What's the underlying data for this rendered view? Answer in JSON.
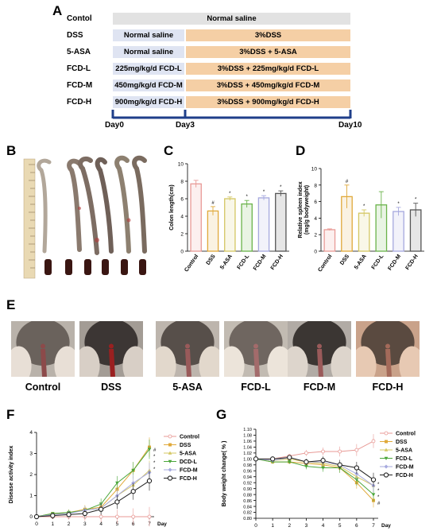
{
  "panelA": {
    "letter": "A",
    "rows": [
      {
        "group": "Contol",
        "pre": "",
        "post": "Normal saline",
        "full": true
      },
      {
        "group": "DSS",
        "pre": "Normal saline",
        "post": "3%DSS"
      },
      {
        "group": "5-ASA",
        "pre": "Normal saline",
        "post": "3%DSS + 5-ASA"
      },
      {
        "group": "FCD-L",
        "pre": "225mg/kg/d FCD-L",
        "post": "3%DSS + 225mg/kg/d FCD-L"
      },
      {
        "group": "FCD-M",
        "pre": "450mg/kg/d FCD-M",
        "post": "3%DSS + 450mg/kg/d FCD-M"
      },
      {
        "group": "FCD-H",
        "pre": "900mg/kg/d FCD-H",
        "post": "3%DSS + 900mg/kg/d FCD-H"
      }
    ],
    "timeline": [
      "Day0",
      "Day3",
      "Day10"
    ],
    "colors": {
      "full": "#e2e2e2",
      "pre": "#dfe4f2",
      "post": "#f5cfa5",
      "timeline": "#1f3f8a"
    }
  },
  "panelB": {
    "letter": "B"
  },
  "panelC": {
    "letter": "C"
  },
  "panelD": {
    "letter": "D"
  },
  "panelE": {
    "letter": "E",
    "labels": [
      "Control",
      "DSS",
      "5-ASA",
      "FCD-L",
      "FCD-M",
      "FCD-H"
    ]
  },
  "panelF": {
    "letter": "F"
  },
  "panelG": {
    "letter": "G"
  },
  "chart_data": [
    {
      "id": "colon-length",
      "type": "bar",
      "ylabel": "Colon length(cm)",
      "ylim": [
        0,
        10
      ],
      "yticks": [
        "0",
        "2",
        "4",
        "6",
        "8",
        "10"
      ],
      "categories": [
        "Control",
        "DSS",
        "5-ASA",
        "FCD-L",
        "FCD-M",
        "FCD-H"
      ],
      "values": [
        7.7,
        4.6,
        6.0,
        5.4,
        6.1,
        6.6
      ],
      "errors": [
        0.4,
        0.5,
        0.2,
        0.4,
        0.25,
        0.3
      ],
      "annotations": [
        "",
        "#",
        "*",
        "*",
        "*",
        "*"
      ],
      "colors": [
        "#e89a96",
        "#e0a93a",
        "#d4c763",
        "#6ab34a",
        "#a6a9de",
        "#555555"
      ],
      "fill_opacity": 0.15
    },
    {
      "id": "spleen-index",
      "type": "bar",
      "ylabel": "Relative spleen index",
      "ylabel2": "(mg/g bodyweight)",
      "ylim": [
        0,
        10
      ],
      "yticks": [
        "0",
        "2",
        "4",
        "6",
        "8",
        "10"
      ],
      "categories": [
        "Control",
        "DSS",
        "5-ASA",
        "FCD-L",
        "FCD-M",
        "FCD-H"
      ],
      "values": [
        2.6,
        6.6,
        4.6,
        5.6,
        4.8,
        5.0
      ],
      "errors": [
        0.1,
        1.4,
        0.4,
        1.6,
        0.5,
        0.8
      ],
      "annotations": [
        "",
        "#",
        "*",
        "",
        "*",
        "*"
      ],
      "colors": [
        "#e89a96",
        "#e0a93a",
        "#d4c763",
        "#6ab34a",
        "#a6a9de",
        "#555555"
      ],
      "fill_opacity": 0.15
    },
    {
      "id": "dai",
      "type": "line",
      "ylabel": "Disease activity index",
      "xlabel": "Day",
      "ylim": [
        0,
        4
      ],
      "yticks": [
        "0",
        "1",
        "2",
        "3",
        "4"
      ],
      "x": [
        0,
        1,
        2,
        3,
        4,
        5,
        6,
        7
      ],
      "series": [
        {
          "name": "Control",
          "color": "#e89a96",
          "values": [
            0,
            0,
            0,
            0,
            0,
            0,
            0,
            0
          ]
        },
        {
          "name": "DSS",
          "color": "#e0a93a",
          "values": [
            0,
            0.15,
            0.2,
            0.35,
            0.45,
            1.3,
            2.2,
            3.3
          ]
        },
        {
          "name": "5-ASA",
          "color": "#d4c763",
          "values": [
            0,
            0.1,
            0.2,
            0.3,
            0.4,
            1.0,
            1.5,
            2.2
          ]
        },
        {
          "name": "DCD-L",
          "color": "#4aa63a",
          "values": [
            0,
            0.15,
            0.2,
            0.3,
            0.6,
            1.6,
            2.2,
            3.2
          ]
        },
        {
          "name": "FCD-M",
          "color": "#a6a9de",
          "values": [
            0,
            0.1,
            0.15,
            0.3,
            0.4,
            1.0,
            1.6,
            2.1
          ]
        },
        {
          "name": "FCD-H",
          "color": "#222222",
          "values": [
            0,
            0.05,
            0.1,
            0.15,
            0.35,
            0.7,
            1.2,
            1.7
          ]
        }
      ],
      "end_annotations": [
        "#",
        "*",
        "*",
        "*"
      ]
    },
    {
      "id": "body-weight",
      "type": "line",
      "ylabel": "Body weight change( % )",
      "xlabel": "Day",
      "ylim": [
        0.8,
        1.1
      ],
      "yticks": [
        "0.80",
        "0.82",
        "0.84",
        "0.86",
        "0.88",
        "0.90",
        "0.92",
        "0.94",
        "0.96",
        "0.98",
        "1.00",
        "1.02",
        "1.04",
        "1.06",
        "1.08",
        "1.10"
      ],
      "x": [
        0,
        1,
        2,
        3,
        4,
        5,
        6,
        7
      ],
      "series": [
        {
          "name": "Control",
          "color": "#e89a96",
          "values": [
            1.0,
            1.0,
            1.01,
            1.02,
            1.025,
            1.025,
            1.03,
            1.06
          ]
        },
        {
          "name": "DSS",
          "color": "#e0a93a",
          "values": [
            1.0,
            0.99,
            0.99,
            0.985,
            0.98,
            0.97,
            0.92,
            0.86
          ]
        },
        {
          "name": "5-ASA",
          "color": "#d4c763",
          "values": [
            1.0,
            0.995,
            1.0,
            0.99,
            0.985,
            0.975,
            0.94,
            0.91
          ]
        },
        {
          "name": "FCD-L",
          "color": "#4aa63a",
          "values": [
            1.0,
            0.99,
            0.99,
            0.975,
            0.97,
            0.97,
            0.93,
            0.88
          ]
        },
        {
          "name": "FCD-M",
          "color": "#a6a9de",
          "values": [
            1.0,
            0.995,
            1.005,
            0.99,
            0.99,
            0.98,
            0.95,
            0.91
          ]
        },
        {
          "name": "FCD-H",
          "color": "#222222",
          "values": [
            1.0,
            1.0,
            1.005,
            0.99,
            0.995,
            0.98,
            0.97,
            0.93
          ]
        }
      ],
      "end_annotations": [
        "*",
        "*",
        "*",
        "#"
      ]
    }
  ]
}
